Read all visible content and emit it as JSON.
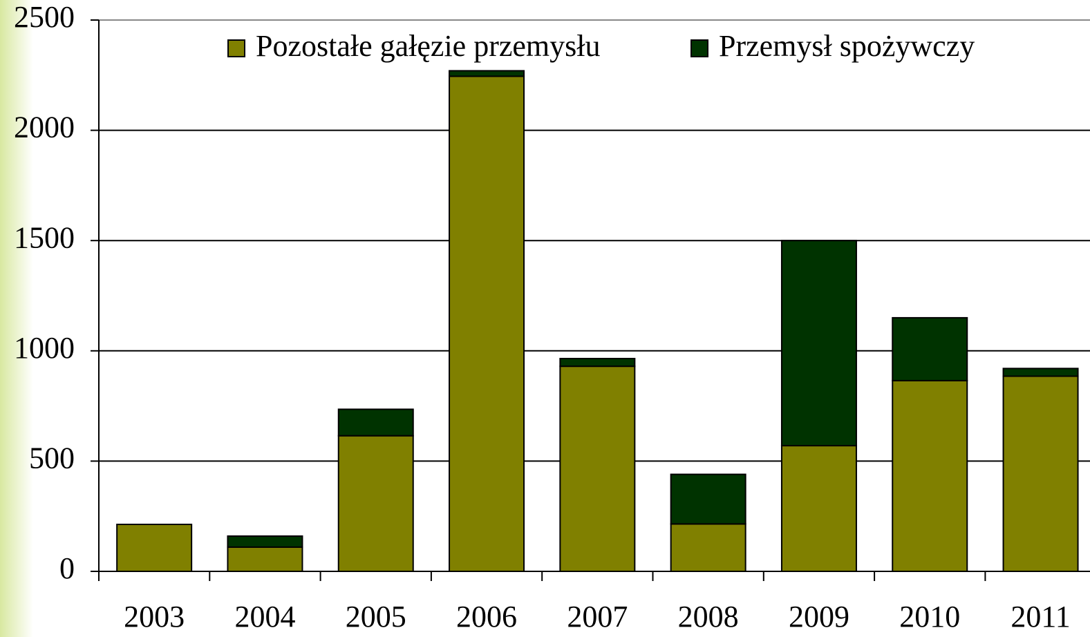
{
  "chart_data": {
    "type": "stacked_bar",
    "categories": [
      "2003",
      "2004",
      "2005",
      "2006",
      "2007",
      "2008",
      "2009",
      "2010",
      "2011"
    ],
    "series": [
      {
        "name": "Pozostałe gałęzie przemysłu",
        "color": "#808000",
        "values": [
          213,
          110,
          615,
          2245,
          930,
          215,
          570,
          865,
          885
        ]
      },
      {
        "name": "Przemysł spożywczy",
        "color": "#003300",
        "values": [
          0,
          50,
          120,
          25,
          35,
          225,
          930,
          285,
          35
        ]
      }
    ],
    "ylim": [
      0,
      2500
    ],
    "yticks": [
      0,
      500,
      1000,
      1500,
      2000,
      2500
    ],
    "grid": true,
    "legend": "top"
  }
}
